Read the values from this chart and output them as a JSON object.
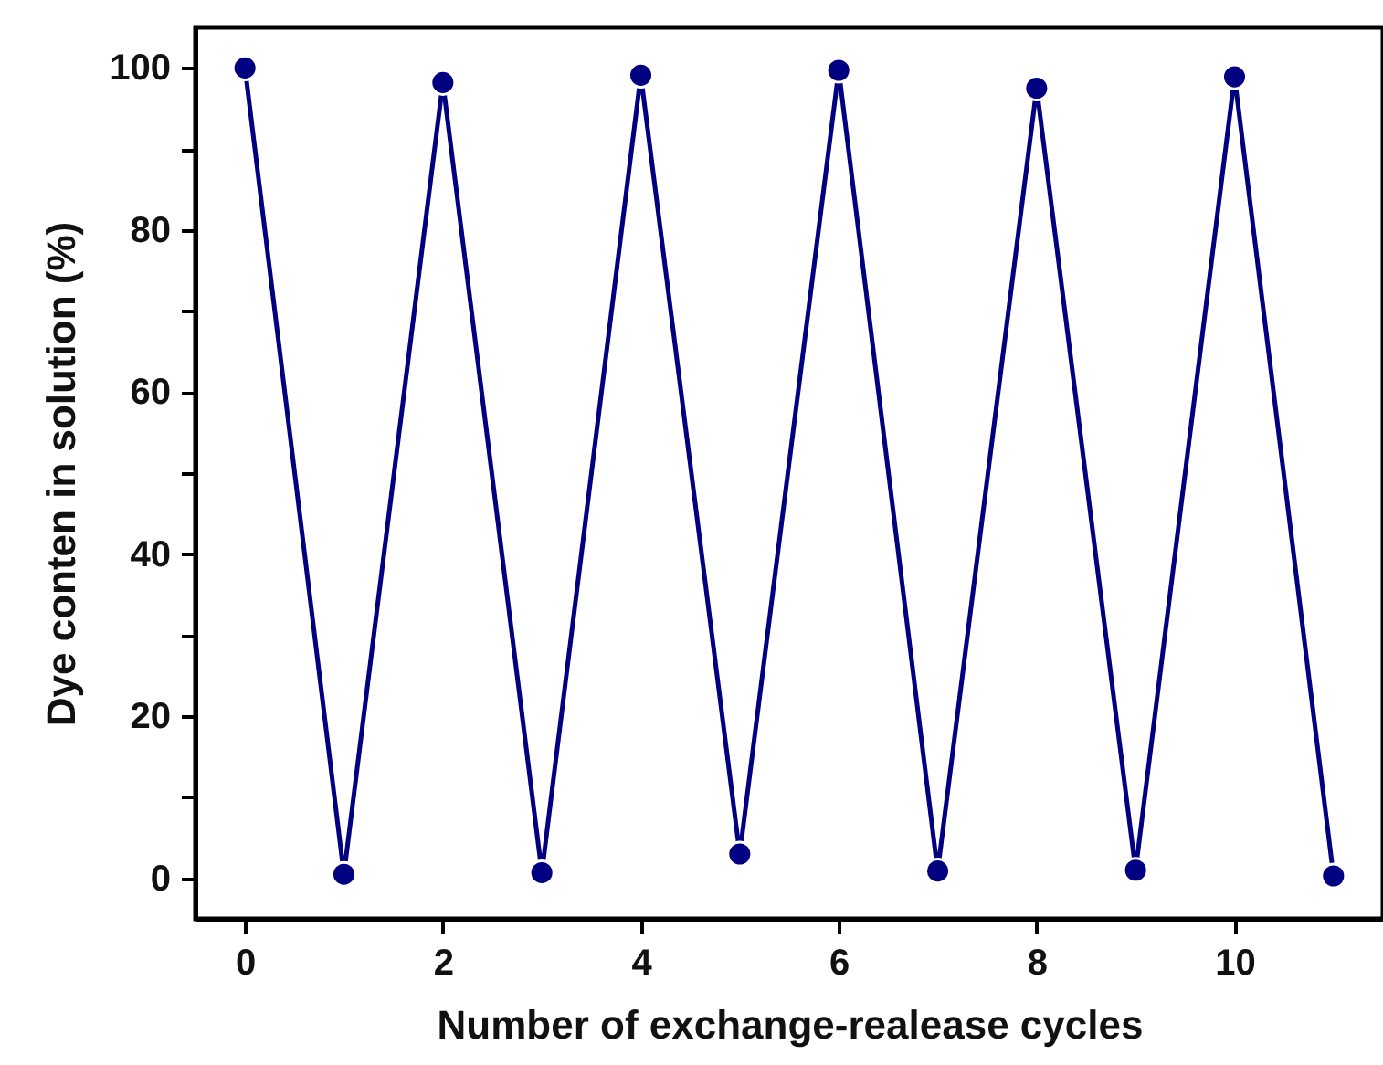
{
  "chart_data": {
    "type": "line",
    "xlabel": "Number of exchange-realease cycles",
    "ylabel": "Dye conten in solution (%)",
    "x": [
      0,
      1,
      2,
      3,
      4,
      5,
      6,
      7,
      8,
      9,
      10,
      11
    ],
    "series": [
      {
        "color": "#000080",
        "values": [
          100,
          0.5,
          98.2,
          0.7,
          99.1,
          3,
          99.7,
          0.9,
          97.5,
          1,
          98.9,
          0.3
        ]
      }
    ],
    "xlim": [
      -0.5,
      11.5
    ],
    "ylim": [
      -5,
      105
    ],
    "xticks": [
      0,
      2,
      4,
      6,
      8,
      10
    ],
    "yticks": [
      0,
      {
        "value": 10,
        "label": null
      },
      20,
      {
        "value": 30,
        "label": null
      },
      40,
      {
        "value": 50,
        "label": null
      },
      60,
      {
        "value": 70,
        "label": null
      },
      80,
      {
        "value": 90,
        "label": null
      },
      100
    ],
    "marker": "circle",
    "line_style": "solid",
    "grid": false
  }
}
